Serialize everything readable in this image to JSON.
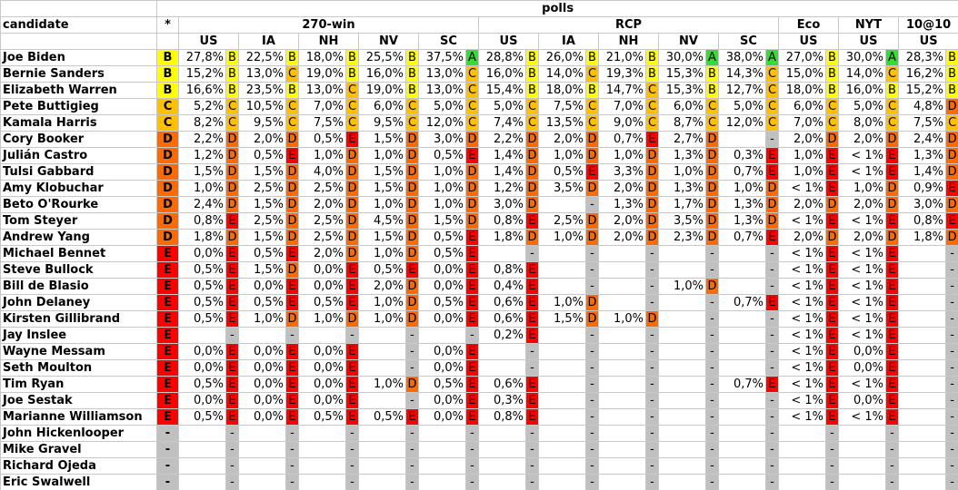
{
  "header": {
    "polls": "polls",
    "candidate": "candidate",
    "star": "*",
    "groups": [
      {
        "name": "270-win",
        "span": 5
      },
      {
        "name": "RCP",
        "span": 5
      },
      {
        "name": "Eco",
        "span": 1
      },
      {
        "name": "NYT",
        "span": 1
      },
      {
        "name": "10@10",
        "span": 1
      }
    ],
    "columns": [
      "US",
      "IA",
      "NH",
      "NV",
      "SC",
      "US",
      "IA",
      "NH",
      "NV",
      "SC",
      "US",
      "US",
      "US"
    ]
  },
  "grade_colors": {
    "A": "#33dd33",
    "B": "#ffff00",
    "C": "#ffc000",
    "D": "#ff6a00",
    "E": "#ff0000",
    "-": "#c0c0c0"
  },
  "rows": [
    [
      "Joe Biden",
      "B",
      "27,8%",
      "B",
      "22,5%",
      "B",
      "18,0%",
      "B",
      "25,5%",
      "B",
      "37,5%",
      "A",
      "28,8%",
      "B",
      "26,0%",
      "B",
      "21,0%",
      "B",
      "30,0%",
      "A",
      "38,0%",
      "A",
      "27,0%",
      "B",
      "30,0%",
      "A",
      "28,3%",
      "B"
    ],
    [
      "Bernie Sanders",
      "B",
      "15,2%",
      "B",
      "13,0%",
      "C",
      "19,0%",
      "B",
      "16,0%",
      "B",
      "13,0%",
      "C",
      "16,0%",
      "B",
      "14,0%",
      "C",
      "19,3%",
      "B",
      "15,3%",
      "B",
      "14,3%",
      "C",
      "15,0%",
      "B",
      "14,0%",
      "C",
      "16,2%",
      "B"
    ],
    [
      "Elizabeth Warren",
      "B",
      "16,6%",
      "B",
      "23,5%",
      "B",
      "13,0%",
      "C",
      "19,0%",
      "B",
      "13,0%",
      "C",
      "15,4%",
      "B",
      "18,0%",
      "B",
      "14,7%",
      "C",
      "15,3%",
      "B",
      "12,7%",
      "C",
      "18,0%",
      "B",
      "16,0%",
      "B",
      "15,2%",
      "B"
    ],
    [
      "Pete Buttigieg",
      "C",
      "5,2%",
      "C",
      "10,5%",
      "C",
      "7,0%",
      "C",
      "6,0%",
      "C",
      "5,0%",
      "C",
      "5,0%",
      "C",
      "7,5%",
      "C",
      "7,0%",
      "C",
      "6,0%",
      "C",
      "5,0%",
      "C",
      "6,0%",
      "C",
      "5,0%",
      "C",
      "4,8%",
      "D"
    ],
    [
      "Kamala Harris",
      "C",
      "8,2%",
      "C",
      "9,5%",
      "C",
      "7,5%",
      "C",
      "9,5%",
      "C",
      "12,0%",
      "C",
      "7,4%",
      "C",
      "13,5%",
      "C",
      "9,0%",
      "C",
      "8,7%",
      "C",
      "12,0%",
      "C",
      "7,0%",
      "C",
      "8,0%",
      "C",
      "7,5%",
      "C"
    ],
    [
      "Cory Booker",
      "D",
      "2,2%",
      "D",
      "2,0%",
      "D",
      "0,5%",
      "E",
      "1,5%",
      "D",
      "3,0%",
      "D",
      "2,2%",
      "D",
      "2,0%",
      "D",
      "0,7%",
      "E",
      "2,7%",
      "D",
      null,
      "-",
      "2,0%",
      "D",
      "2,0%",
      "D",
      "2,4%",
      "D"
    ],
    [
      "Julián Castro",
      "D",
      "1,2%",
      "D",
      "0,5%",
      "E",
      "1,0%",
      "D",
      "1,0%",
      "D",
      "0,5%",
      "E",
      "1,4%",
      "D",
      "1,0%",
      "D",
      "1,0%",
      "D",
      "1,3%",
      "D",
      "0,3%",
      "E",
      "1,0%",
      "E",
      "< 1%",
      "E",
      "1,3%",
      "D"
    ],
    [
      "Tulsi Gabbard",
      "D",
      "1,5%",
      "D",
      "1,5%",
      "D",
      "4,0%",
      "D",
      "1,5%",
      "D",
      "1,0%",
      "D",
      "1,4%",
      "D",
      "0,5%",
      "E",
      "3,3%",
      "D",
      "1,0%",
      "D",
      "0,7%",
      "E",
      "1,0%",
      "E",
      "< 1%",
      "E",
      "1,4%",
      "D"
    ],
    [
      "Amy Klobuchar",
      "D",
      "1,0%",
      "D",
      "2,5%",
      "D",
      "2,5%",
      "D",
      "1,5%",
      "D",
      "1,0%",
      "D",
      "1,2%",
      "D",
      "3,5%",
      "D",
      "2,0%",
      "D",
      "1,3%",
      "D",
      "1,0%",
      "D",
      "< 1%",
      "E",
      "1,0%",
      "D",
      "0,9%",
      "E"
    ],
    [
      "Beto O'Rourke",
      "D",
      "2,4%",
      "D",
      "1,5%",
      "D",
      "2,0%",
      "D",
      "1,0%",
      "D",
      "1,0%",
      "D",
      "3,0%",
      "D",
      null,
      "-",
      "1,3%",
      "D",
      "1,7%",
      "D",
      "1,3%",
      "D",
      "2,0%",
      "D",
      "2,0%",
      "D",
      "3,0%",
      "D"
    ],
    [
      "Tom Steyer",
      "D",
      "0,8%",
      "E",
      "2,5%",
      "D",
      "2,5%",
      "D",
      "4,5%",
      "D",
      "1,5%",
      "D",
      "0,8%",
      "E",
      "2,5%",
      "D",
      "2,0%",
      "D",
      "3,5%",
      "D",
      "1,3%",
      "D",
      "< 1%",
      "E",
      "< 1%",
      "E",
      "0,8%",
      "E"
    ],
    [
      "Andrew Yang",
      "D",
      "1,8%",
      "D",
      "1,5%",
      "D",
      "2,5%",
      "D",
      "1,5%",
      "D",
      "0,5%",
      "E",
      "1,8%",
      "D",
      "1,0%",
      "D",
      "2,0%",
      "D",
      "2,3%",
      "D",
      "0,7%",
      "E",
      "2,0%",
      "D",
      "2,0%",
      "D",
      "1,8%",
      "D"
    ],
    [
      "Michael Bennet",
      "E",
      "0,0%",
      "E",
      "0,5%",
      "E",
      "2,0%",
      "D",
      "1,0%",
      "D",
      "0,5%",
      "E",
      null,
      "-",
      null,
      "-",
      null,
      "-",
      null,
      "-",
      null,
      "-",
      "< 1%",
      "E",
      "< 1%",
      "E",
      null,
      "-"
    ],
    [
      "Steve Bullock",
      "E",
      "0,5%",
      "E",
      "1,5%",
      "D",
      "0,0%",
      "E",
      "0,5%",
      "E",
      "0,0%",
      "E",
      "0,8%",
      "E",
      null,
      "-",
      null,
      "-",
      null,
      "-",
      null,
      "-",
      "< 1%",
      "E",
      "< 1%",
      "E",
      null,
      "-"
    ],
    [
      "Bill de Blasio",
      "E",
      "0,5%",
      "E",
      "0,0%",
      "E",
      "0,0%",
      "E",
      "2,0%",
      "D",
      "0,0%",
      "E",
      "0,4%",
      "E",
      null,
      "-",
      null,
      "-",
      "1,0%",
      "D",
      null,
      "-",
      "< 1%",
      "E",
      "< 1%",
      "E",
      null,
      "-"
    ],
    [
      "John Delaney",
      "E",
      "0,5%",
      "E",
      "0,5%",
      "E",
      "0,5%",
      "E",
      "1,0%",
      "D",
      "0,5%",
      "E",
      "0,6%",
      "E",
      "1,0%",
      "D",
      null,
      "-",
      null,
      "-",
      "0,7%",
      "E",
      "< 1%",
      "E",
      "< 1%",
      "E",
      null,
      "-"
    ],
    [
      "Kirsten Gillibrand",
      "E",
      "0,5%",
      "E",
      "1,0%",
      "D",
      "1,0%",
      "D",
      "1,0%",
      "D",
      "0,0%",
      "E",
      "0,6%",
      "E",
      "1,5%",
      "D",
      "1,0%",
      "D",
      null,
      "-",
      null,
      "-",
      "< 1%",
      "E",
      "< 1%",
      "E",
      null,
      "-"
    ],
    [
      "Jay Inslee",
      "E",
      null,
      "-",
      null,
      "-",
      null,
      "-",
      null,
      "-",
      null,
      "-",
      "0,2%",
      "E",
      null,
      "-",
      null,
      "-",
      null,
      "-",
      null,
      "-",
      "< 1%",
      "E",
      "< 1%",
      "E",
      null,
      "-"
    ],
    [
      "Wayne Messam",
      "E",
      "0,0%",
      "E",
      "0,0%",
      "E",
      "0,0%",
      "E",
      null,
      "-",
      "0,0%",
      "E",
      null,
      "-",
      null,
      "-",
      null,
      "-",
      null,
      "-",
      null,
      "-",
      "< 1%",
      "E",
      "0,0%",
      "E",
      null,
      "-"
    ],
    [
      "Seth Moulton",
      "E",
      "0,0%",
      "E",
      "0,0%",
      "E",
      "0,0%",
      "E",
      null,
      "-",
      "0,0%",
      "E",
      null,
      "-",
      null,
      "-",
      null,
      "-",
      null,
      "-",
      null,
      "-",
      "< 1%",
      "E",
      "0,0%",
      "E",
      null,
      "-"
    ],
    [
      "Tim Ryan",
      "E",
      "0,5%",
      "E",
      "0,0%",
      "E",
      "0,0%",
      "E",
      "1,0%",
      "D",
      "0,5%",
      "E",
      "0,6%",
      "E",
      null,
      "-",
      null,
      "-",
      null,
      "-",
      "0,7%",
      "E",
      "< 1%",
      "E",
      "< 1%",
      "E",
      null,
      "-"
    ],
    [
      "Joe Sestak",
      "E",
      "0,0%",
      "E",
      "0,0%",
      "E",
      "0,0%",
      "E",
      null,
      "-",
      "0,0%",
      "E",
      "0,3%",
      "E",
      null,
      "-",
      null,
      "-",
      null,
      "-",
      null,
      "-",
      "< 1%",
      "E",
      "0,0%",
      "E",
      null,
      "-"
    ],
    [
      "Marianne Williamson",
      "E",
      "0,5%",
      "E",
      "0,0%",
      "E",
      "0,5%",
      "E",
      "0,5%",
      "E",
      "0,0%",
      "E",
      "0,8%",
      "E",
      null,
      "-",
      null,
      "-",
      null,
      "-",
      null,
      "-",
      "< 1%",
      "E",
      "< 1%",
      "E",
      null,
      "-"
    ],
    [
      "John Hickenlooper",
      "-",
      null,
      "-",
      null,
      "-",
      null,
      "-",
      null,
      "-",
      null,
      "-",
      null,
      "-",
      null,
      "-",
      null,
      "-",
      null,
      "-",
      null,
      "-",
      null,
      "-",
      null,
      "-",
      null,
      "-"
    ],
    [
      "Mike Gravel",
      "-",
      null,
      "-",
      null,
      "-",
      null,
      "-",
      null,
      "-",
      null,
      "-",
      null,
      "-",
      null,
      "-",
      null,
      "-",
      null,
      "-",
      null,
      "-",
      null,
      "-",
      null,
      "-",
      null,
      "-"
    ],
    [
      "Richard Ojeda",
      "-",
      null,
      "-",
      null,
      "-",
      null,
      "-",
      null,
      "-",
      null,
      "-",
      null,
      "-",
      null,
      "-",
      null,
      "-",
      null,
      "-",
      null,
      "-",
      null,
      "-",
      null,
      "-",
      null,
      "-"
    ],
    [
      "Eric Swalwell",
      "-",
      null,
      "-",
      null,
      "-",
      null,
      "-",
      null,
      "-",
      null,
      "-",
      null,
      "-",
      null,
      "-",
      null,
      "-",
      null,
      "-",
      null,
      "-",
      null,
      "-",
      null,
      "-",
      null,
      "-"
    ]
  ]
}
